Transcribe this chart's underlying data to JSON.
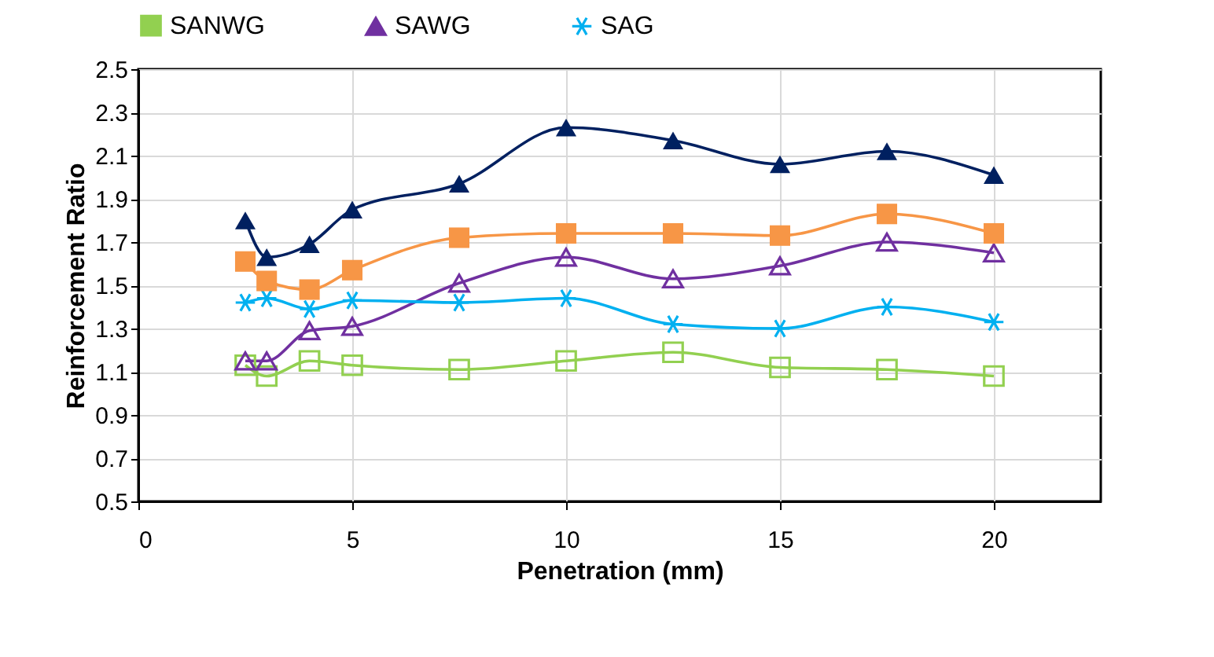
{
  "chart_data": {
    "type": "line",
    "xlabel": "Penetration (mm)",
    "ylabel": "Reinforcement Ratio",
    "x": [
      2.5,
      3,
      4,
      5,
      7.5,
      10,
      12.5,
      15,
      17.5,
      20
    ],
    "series": [
      {
        "name": "SANWG",
        "color": "#92d050",
        "marker": "square",
        "values": [
          1.13,
          1.08,
          1.15,
          1.13,
          1.11,
          1.15,
          1.19,
          1.12,
          1.11,
          1.08
        ]
      },
      {
        "name": "SAWG",
        "color": "#7030a0",
        "marker": "triangle",
        "values": [
          1.15,
          1.15,
          1.29,
          1.31,
          1.51,
          1.63,
          1.53,
          1.59,
          1.7,
          1.65
        ]
      },
      {
        "name": "SAG",
        "color": "#00b0f0",
        "marker": "cross",
        "values": [
          1.42,
          1.44,
          1.39,
          1.43,
          1.42,
          1.44,
          1.32,
          1.3,
          1.4,
          1.33
        ]
      },
      {
        "color": "#f79646",
        "marker": "square",
        "values": [
          1.61,
          1.52,
          1.48,
          1.57,
          1.72,
          1.74,
          1.74,
          1.73,
          1.83,
          1.74
        ]
      },
      {
        "color": "#002060",
        "marker": "triangle",
        "values": [
          1.8,
          1.63,
          1.69,
          1.85,
          1.97,
          2.23,
          2.17,
          2.06,
          2.12,
          2.01
        ]
      }
    ],
    "xlim": [
      0,
      22.5
    ],
    "xticks": [
      0,
      5,
      10,
      15,
      20
    ],
    "ylim": [
      0.5,
      2.5
    ],
    "yticks": [
      0.5,
      0.7,
      0.9,
      1.1,
      1.3,
      1.5,
      1.7,
      1.9,
      2.1,
      2.3,
      2.5
    ],
    "grid": true,
    "legend": "top"
  }
}
